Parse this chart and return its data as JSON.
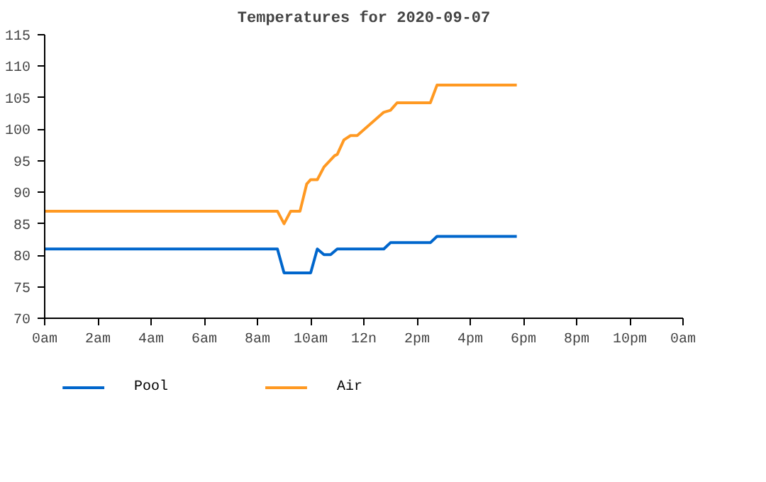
{
  "chart_data": {
    "type": "line",
    "title": "Temperatures for 2020-09-07",
    "xlim": [
      "2020-09-07T00:00",
      "2020-09-08T00:00"
    ],
    "xticks": [
      {
        "value": "2020-09-07T00:00",
        "label": "0am"
      },
      {
        "value": "2020-09-07T02:00",
        "label": "2am"
      },
      {
        "value": "2020-09-07T04:00",
        "label": "4am"
      },
      {
        "value": "2020-09-07T06:00",
        "label": "6am"
      },
      {
        "value": "2020-09-07T08:00",
        "label": "8am"
      },
      {
        "value": "2020-09-07T10:00",
        "label": "10am"
      },
      {
        "value": "2020-09-07T12:00",
        "label": "12n"
      },
      {
        "value": "2020-09-07T14:00",
        "label": "2pm"
      },
      {
        "value": "2020-09-07T16:00",
        "label": "4pm"
      },
      {
        "value": "2020-09-07T18:00",
        "label": "6pm"
      },
      {
        "value": "2020-09-07T20:00",
        "label": "8pm"
      },
      {
        "value": "2020-09-07T22:00",
        "label": "10pm"
      },
      {
        "value": "2020-09-08T00:00",
        "label": "0am"
      }
    ],
    "ylim": [
      70,
      115
    ],
    "yticks": [
      70,
      75,
      80,
      85,
      90,
      95,
      100,
      105,
      110,
      115
    ],
    "legend": "bottom",
    "line_style": "solid",
    "series": [
      {
        "name": "Pool",
        "color": "#0066cc",
        "x": [
          "2020-09-07T00:00",
          "2020-09-07T08:45",
          "2020-09-07T09:00",
          "2020-09-07T10:00",
          "2020-09-07T10:15",
          "2020-09-07T10:30",
          "2020-09-07T10:45",
          "2020-09-07T11:00",
          "2020-09-07T12:45",
          "2020-09-07T13:00",
          "2020-09-07T14:30",
          "2020-09-07T14:45",
          "2020-09-07T17:45"
        ],
        "values": [
          81,
          81,
          77.2,
          77.2,
          81,
          80.1,
          80.1,
          81,
          81,
          82,
          82,
          83,
          83
        ]
      },
      {
        "name": "Air",
        "color": "#ff9922",
        "x": [
          "2020-09-07T00:00",
          "2020-09-07T08:45",
          "2020-09-07T09:00",
          "2020-09-07T09:15",
          "2020-09-07T09:36",
          "2020-09-07T09:51",
          "2020-09-07T10:00",
          "2020-09-07T10:15",
          "2020-09-07T10:30",
          "2020-09-07T10:54",
          "2020-09-07T11:00",
          "2020-09-07T11:15",
          "2020-09-07T11:30",
          "2020-09-07T11:45",
          "2020-09-07T12:45",
          "2020-09-07T13:00",
          "2020-09-07T13:15",
          "2020-09-07T14:30",
          "2020-09-07T14:45",
          "2020-09-07T17:45"
        ],
        "values": [
          87,
          87,
          85,
          87,
          87,
          91.3,
          92,
          92,
          94,
          95.8,
          96,
          98.3,
          99,
          99,
          102.7,
          103,
          104.2,
          104.2,
          107,
          107
        ]
      }
    ]
  }
}
